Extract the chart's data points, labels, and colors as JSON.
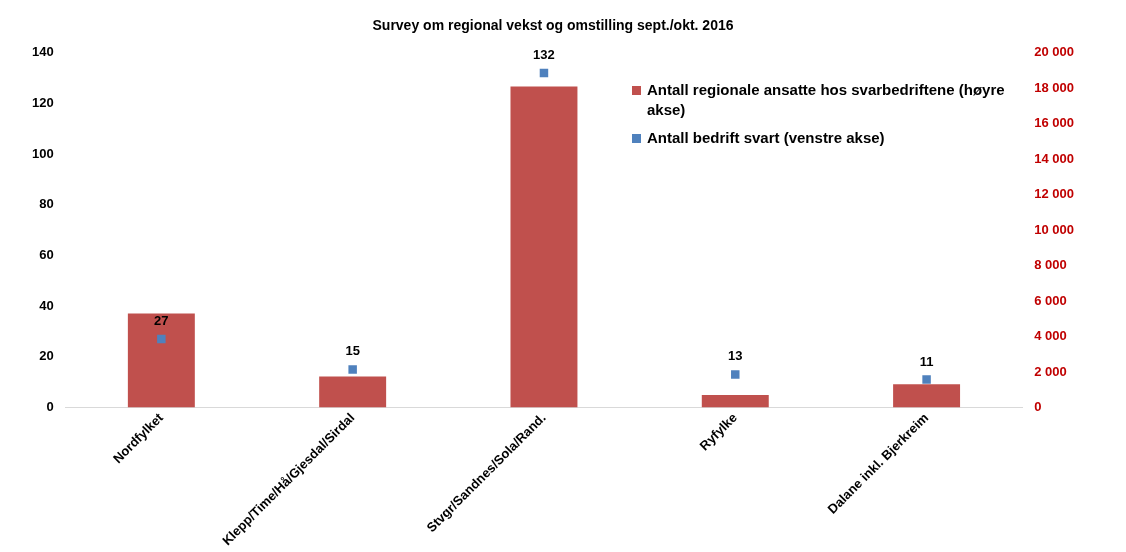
{
  "chart_data": {
    "type": "bar",
    "title": "Survey om regional vekst og omstilling sept./okt. 2016",
    "categories": [
      "Nordfylket",
      "Klepp/Time/Hå/Gjesdal/Sirdal",
      "Stvgr/Sandnes/Sola/Rand.",
      "Ryfylke",
      "Dalane inkl. Bjerkreim"
    ],
    "series": [
      {
        "name": "Antall regionale ansatte hos svarbedriftene (høyre akse)",
        "axis": "y2",
        "color": "#c0504d",
        "values": [
          5300,
          1750,
          18100,
          700,
          1300
        ]
      },
      {
        "name": "Antall bedrift svart (venstre akse)",
        "type": "scatter",
        "axis": "y",
        "color": "#4f81bd",
        "values": [
          27,
          15,
          132,
          13,
          11
        ],
        "value_labels": [
          "27",
          "15",
          "132",
          "13",
          "11"
        ]
      }
    ],
    "marker": "square",
    "legend": "top right",
    "grid": false,
    "ylim": [
      0,
      140
    ],
    "yticks": [
      0,
      20,
      40,
      60,
      80,
      100,
      120,
      140
    ],
    "y2lim": [
      0,
      20000
    ],
    "y2ticks": [
      {
        "value": 0,
        "label": "0"
      },
      {
        "value": 2000,
        "label": "2 000"
      },
      {
        "value": 4000,
        "label": "4 000"
      },
      {
        "value": 6000,
        "label": "6 000"
      },
      {
        "value": 8000,
        "label": "8 000"
      },
      {
        "value": 10000,
        "label": "10 000"
      },
      {
        "value": 12000,
        "label": "12 000"
      },
      {
        "value": 14000,
        "label": "14 000"
      },
      {
        "value": 16000,
        "label": "16 000"
      },
      {
        "value": 18000,
        "label": "18 000"
      },
      {
        "value": 20000,
        "label": "20 000"
      }
    ]
  }
}
